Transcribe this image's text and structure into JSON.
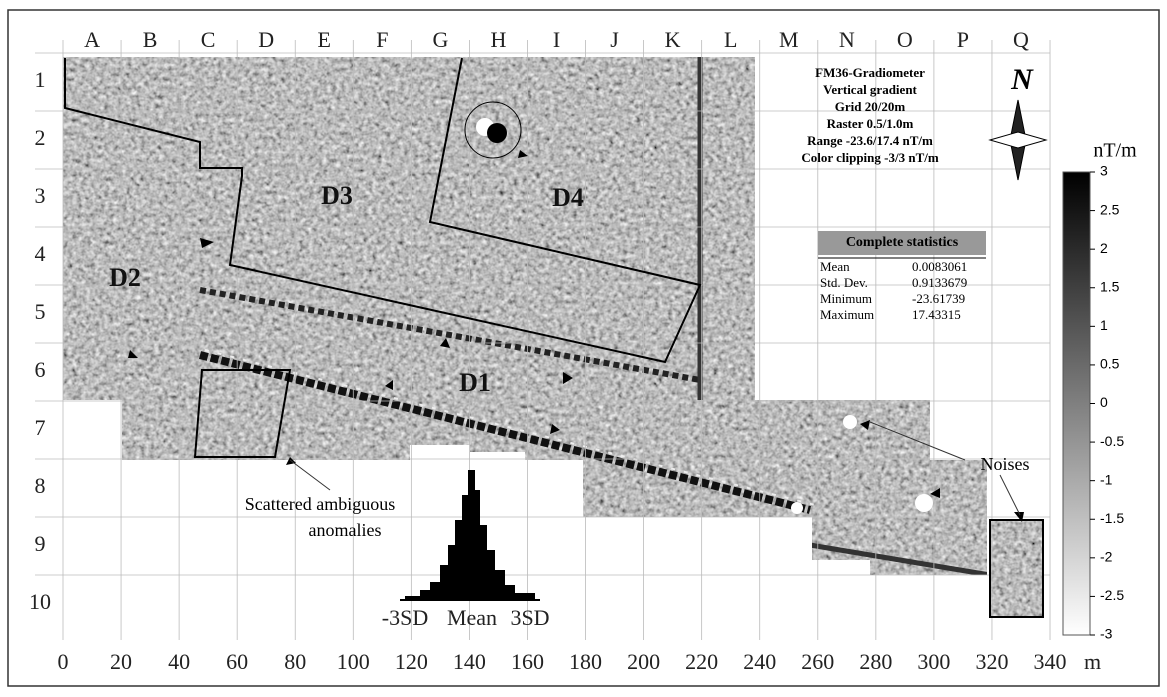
{
  "columns": [
    "A",
    "B",
    "C",
    "D",
    "E",
    "F",
    "G",
    "H",
    "I",
    "J",
    "K",
    "L",
    "M",
    "N",
    "O",
    "P",
    "Q"
  ],
  "rows": [
    "1",
    "2",
    "3",
    "4",
    "5",
    "6",
    "7",
    "8",
    "9",
    "10"
  ],
  "x_axis": {
    "ticks": [
      "0",
      "20",
      "40",
      "60",
      "80",
      "100",
      "120",
      "140",
      "160",
      "180",
      "200",
      "220",
      "240",
      "260",
      "280",
      "300",
      "320",
      "340"
    ],
    "unit": "m"
  },
  "legend": {
    "lines": [
      "FM36-Gradiometer",
      "Vertical gradient",
      "Grid 20/20m",
      "Raster 0.5/1.0m",
      "Range -23.6/17.4 nT/m",
      "Color clipping -3/3 nT/m"
    ],
    "north": "N"
  },
  "statistics": {
    "title": "Complete statistics",
    "rows": [
      [
        "Mean",
        "0.0083061"
      ],
      [
        "Std. Dev.",
        "0.9133679"
      ],
      [
        "Minimum",
        "-23.61739"
      ],
      [
        "Maximum",
        "17.43315"
      ]
    ]
  },
  "colorbar": {
    "unit": "nT/m",
    "ticks": [
      "3",
      "2.5",
      "2",
      "1.5",
      "1",
      "0.5",
      "0",
      "-0.5",
      "-1",
      "-1.5",
      "-2",
      "-2.5",
      "-3"
    ]
  },
  "zones": [
    "D1",
    "D2",
    "D3",
    "D4"
  ],
  "annotations": {
    "ambiguous": [
      "Scattered ambiguous",
      "anomalies"
    ],
    "noises": "Noises"
  },
  "histogram": {
    "labels": [
      "-3SD",
      "Mean",
      "3SD"
    ]
  }
}
